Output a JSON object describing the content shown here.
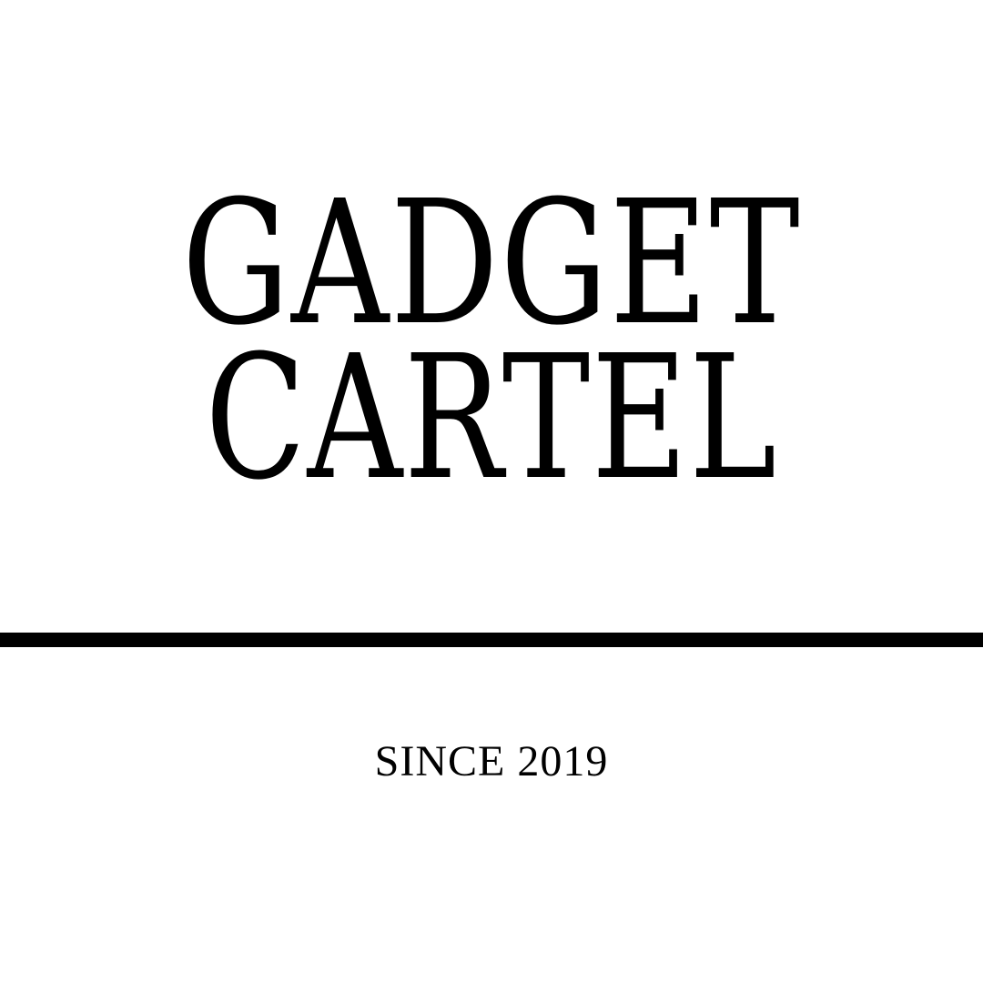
{
  "logo": {
    "line_1": "GADGET",
    "line_2": "CARTEL",
    "tagline": "SINCE 2019",
    "text_color": "#000000",
    "background_color": "#ffffff",
    "divider_color": "#000000"
  }
}
